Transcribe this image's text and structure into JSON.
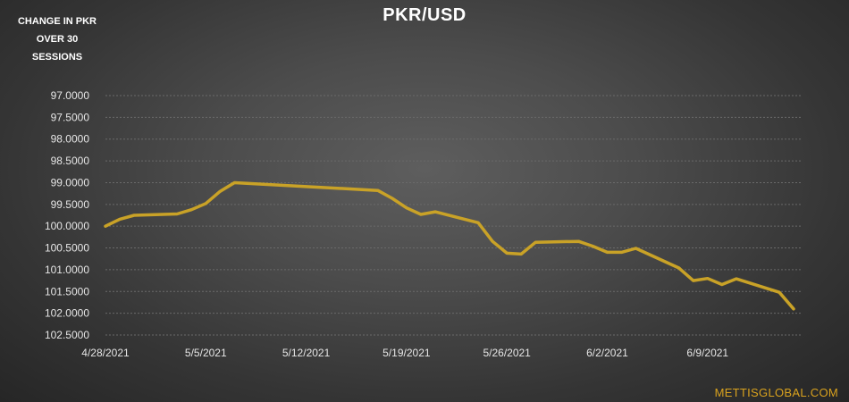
{
  "chart_data": {
    "type": "line",
    "title": "PKR/USD",
    "ylabel": "CHANGE IN PKR OVER 30 SESSIONS",
    "y_axis_reversed": true,
    "ylim": [
      97.0,
      102.5
    ],
    "yticks": [
      "97.0000",
      "97.5000",
      "98.0000",
      "98.5000",
      "99.0000",
      "99.5000",
      "100.0000",
      "100.5000",
      "101.0000",
      "101.5000",
      "102.0000",
      "102.5000"
    ],
    "xticks": [
      "4/28/2021",
      "5/5/2021",
      "5/12/2021",
      "5/19/2021",
      "5/26/2021",
      "6/2/2021",
      "6/9/2021"
    ],
    "grid": true,
    "line_color": "#c9a227",
    "series": [
      {
        "x": [
          "2021-04-28",
          "2021-04-29",
          "2021-04-30",
          "2021-05-03",
          "2021-05-04",
          "2021-05-05",
          "2021-05-06",
          "2021-05-07",
          "2021-05-17",
          "2021-05-18",
          "2021-05-19",
          "2021-05-20",
          "2021-05-21",
          "2021-05-24",
          "2021-05-25",
          "2021-05-26",
          "2021-05-27",
          "2021-05-28",
          "2021-05-31",
          "2021-06-01",
          "2021-06-02",
          "2021-06-03",
          "2021-06-04",
          "2021-06-07",
          "2021-06-08",
          "2021-06-09",
          "2021-06-10",
          "2021-06-11",
          "2021-06-14",
          "2021-06-15"
        ],
        "y": [
          100.0,
          99.84,
          99.75,
          99.72,
          99.62,
          99.48,
          99.2,
          99.0,
          99.18,
          99.36,
          99.58,
          99.73,
          99.67,
          99.92,
          100.35,
          100.62,
          100.64,
          100.37,
          100.35,
          100.46,
          100.6,
          100.6,
          100.51,
          100.96,
          101.25,
          101.2,
          101.34,
          101.21,
          101.52,
          101.9
        ]
      }
    ]
  },
  "watermark": "METTISGLOBAL.COM"
}
